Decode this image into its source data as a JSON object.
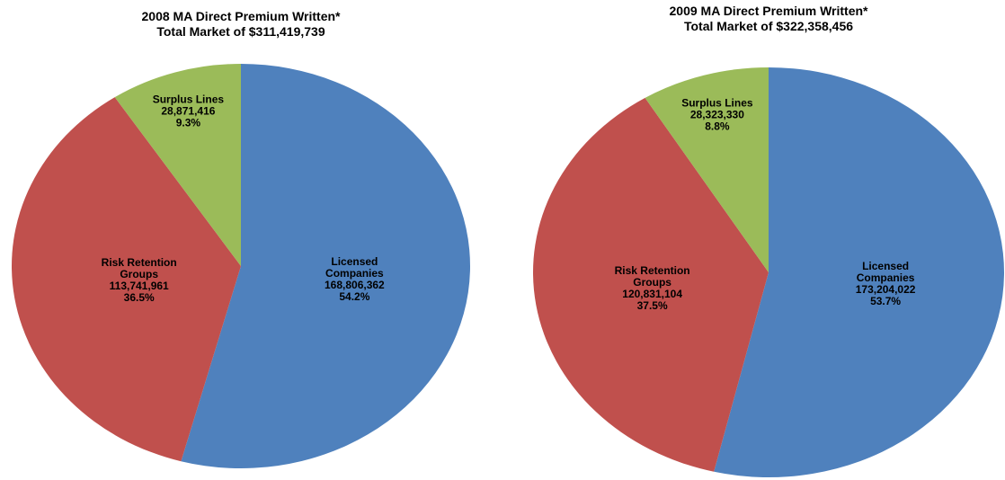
{
  "chart_data": [
    {
      "type": "pie",
      "title": "2008 MA Direct Premium Written*",
      "subtitle": "Total Market of $311,419,739",
      "categories": [
        "Licensed Companies",
        "Risk Retention Groups",
        "Surplus Lines"
      ],
      "values": [
        168806362,
        113741961,
        28871416
      ],
      "value_labels": [
        "168,806,362",
        "113,741,961",
        "28,871,416"
      ],
      "percent_labels": [
        "54.2%",
        "36.5%",
        "9.3%"
      ],
      "colors": [
        "#4f81bd",
        "#c0504d",
        "#9bbb59"
      ]
    },
    {
      "type": "pie",
      "title": "2009 MA Direct Premium Written*",
      "subtitle": "Total Market of $322,358,456",
      "categories": [
        "Licensed Companies",
        "Risk Retention Groups",
        "Surplus Lines"
      ],
      "values": [
        173204022,
        120831104,
        28323330
      ],
      "value_labels": [
        "173,204,022",
        "120,831,104",
        "28,323,330"
      ],
      "percent_labels": [
        "53.7%",
        "37.5%",
        "8.8%"
      ],
      "colors": [
        "#4f81bd",
        "#c0504d",
        "#9bbb59"
      ]
    }
  ]
}
